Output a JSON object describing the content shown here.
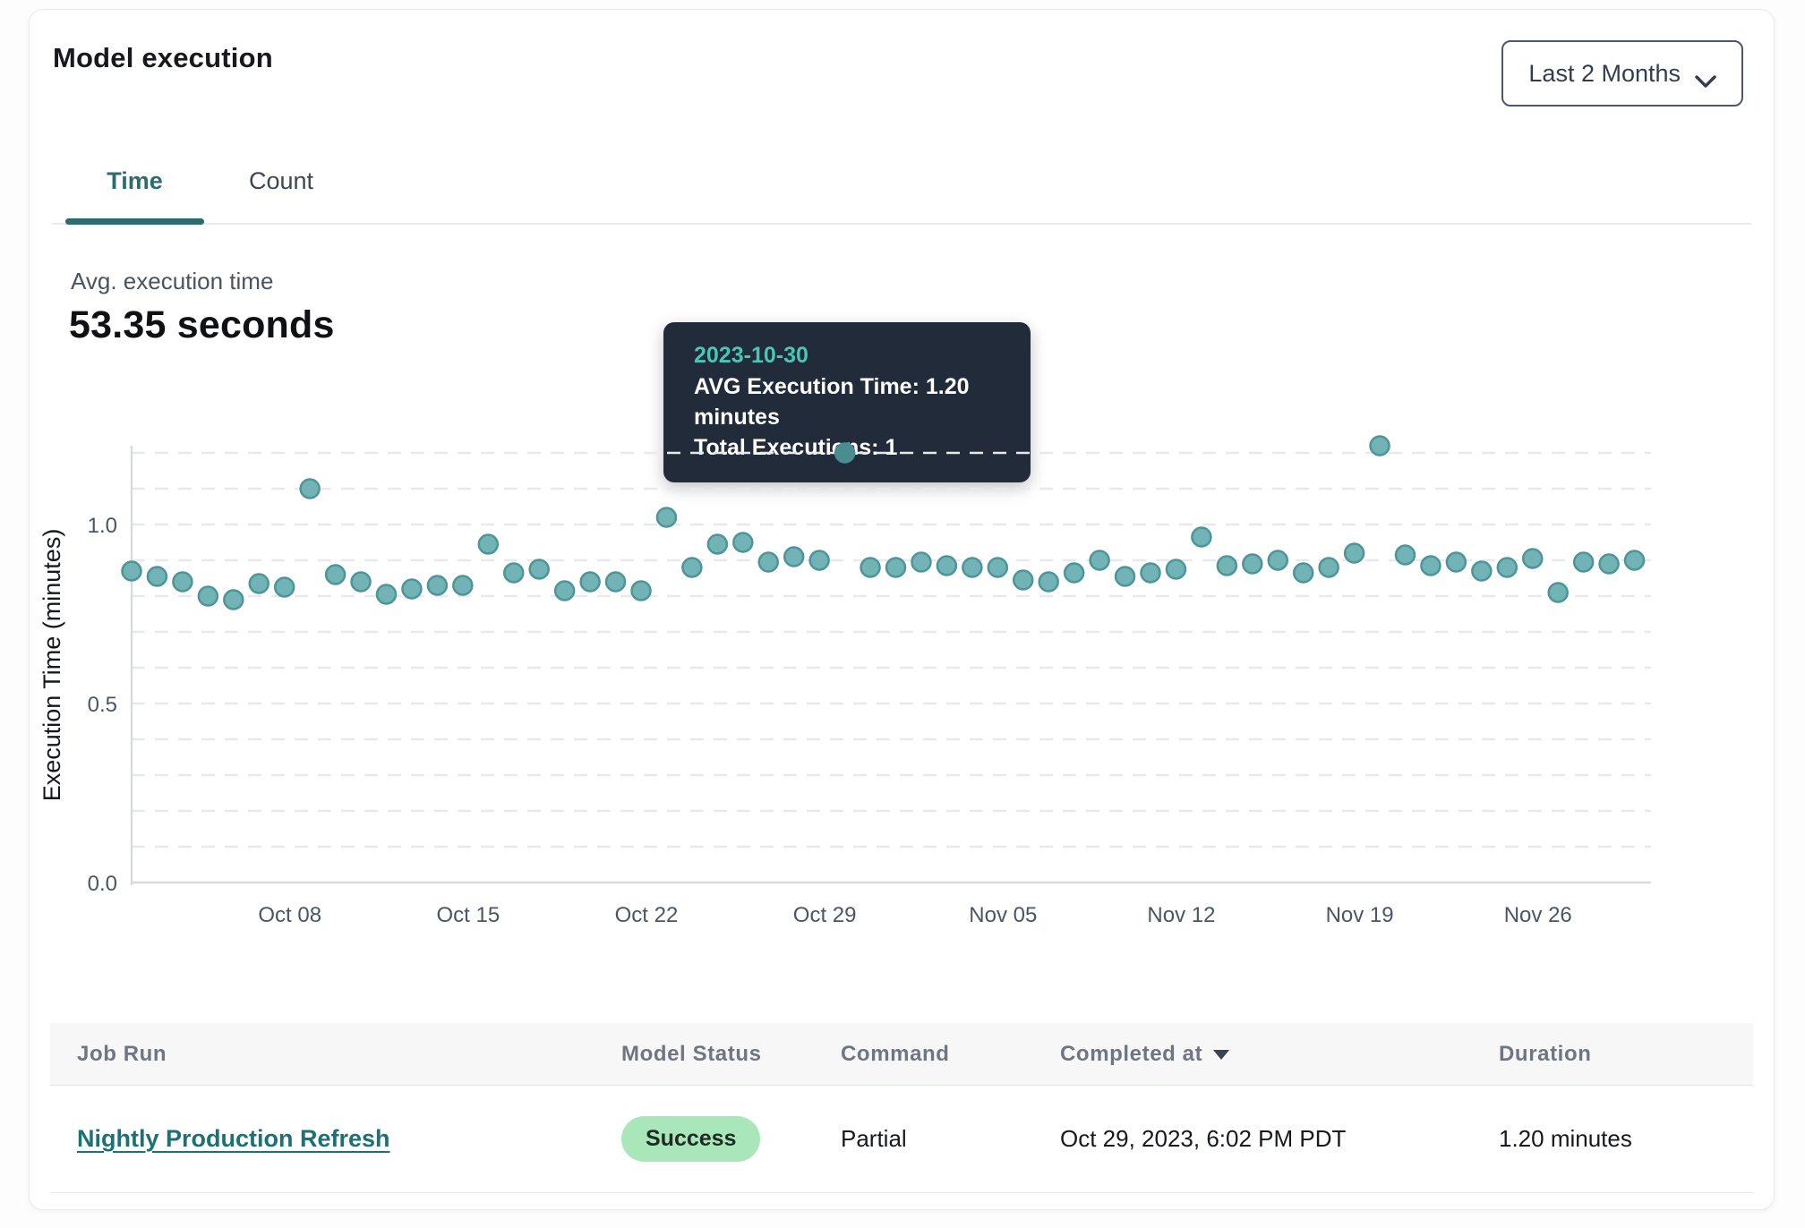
{
  "header": {
    "title": "Model execution",
    "range_selector": "Last 2 Months"
  },
  "tabs": [
    {
      "label": "Time",
      "active": true
    },
    {
      "label": "Count",
      "active": false
    }
  ],
  "summary": {
    "label": "Avg. execution time",
    "value": "53.35 seconds"
  },
  "tooltip": {
    "date": "2023-10-30",
    "line1": "AVG Execution Time: 1.20 minutes",
    "line2": "Total Executions: 1"
  },
  "chart_data": {
    "type": "scatter",
    "title": "Avg. execution time",
    "xlabel": "",
    "ylabel": "Execution Time (minutes)",
    "x_start_date": "2023-10-02",
    "x_end_date": "2023-11-30",
    "point_interval_days": 1,
    "values": [
      0.87,
      0.855,
      0.84,
      0.8,
      0.79,
      0.835,
      0.825,
      1.1,
      0.86,
      0.84,
      0.805,
      0.82,
      0.83,
      0.83,
      0.945,
      0.865,
      0.875,
      0.815,
      0.84,
      0.84,
      0.815,
      1.02,
      0.88,
      0.945,
      0.95,
      0.895,
      0.91,
      0.9,
      1.2,
      0.88,
      0.88,
      0.895,
      0.885,
      0.88,
      0.88,
      0.845,
      0.84,
      0.865,
      0.9,
      0.855,
      0.865,
      0.875,
      0.965,
      0.885,
      0.89,
      0.9,
      0.865,
      0.88,
      0.92,
      1.22,
      0.915,
      0.885,
      0.895,
      0.87,
      0.88,
      0.905,
      0.81,
      0.895,
      0.89,
      0.9
    ],
    "highlighted_point": {
      "index": 28,
      "date": "2023-10-30",
      "value": 1.2,
      "total_executions": 1
    },
    "y_ticks": [
      {
        "label": "1.0",
        "value": 1.0
      },
      {
        "label": "0.5",
        "value": 0.5
      },
      {
        "label": "0.0",
        "value": 0.0
      }
    ],
    "x_ticks": [
      {
        "label": "Oct 08",
        "index": 6
      },
      {
        "label": "Oct 15",
        "index": 13
      },
      {
        "label": "Oct 22",
        "index": 20
      },
      {
        "label": "Oct 29",
        "index": 27
      },
      {
        "label": "Nov 05",
        "index": 34
      },
      {
        "label": "Nov 12",
        "index": 41
      },
      {
        "label": "Nov 19",
        "index": 48
      },
      {
        "label": "Nov 26",
        "index": 55
      }
    ],
    "ylim": [
      0,
      1.25
    ],
    "grid_step": 0.1,
    "grid": "dashed-horizontal",
    "legend_position": "none"
  },
  "table": {
    "columns": [
      "Job Run",
      "Model Status",
      "Command",
      "Completed at",
      "Duration"
    ],
    "sort_column": "Completed at",
    "sort_direction": "desc",
    "rows": [
      {
        "job_run": "Nightly Production Refresh",
        "model_status": "Success",
        "command": "Partial",
        "completed_at": "Oct 29, 2023, 6:02 PM PDT",
        "duration": "1.20 minutes"
      }
    ]
  },
  "colors": {
    "accent": "#2b6d6f",
    "link": "#1d7073",
    "heading": "#17191d",
    "muted": "#4a5360",
    "table-head": "#6e7681",
    "tooltip-bg": "#212b39",
    "tooltip-date": "#4cc5b5",
    "badge-bg": "#a9e7ba",
    "badge-text": "#1d2b22",
    "dot-fill": "#72b3b5",
    "dot-stroke": "#4d9598",
    "dot-selected": "#4a8c90",
    "grid-line": "#e8e9ec",
    "axis-line": "#d8dadd",
    "tick-text": "#4b5563"
  }
}
